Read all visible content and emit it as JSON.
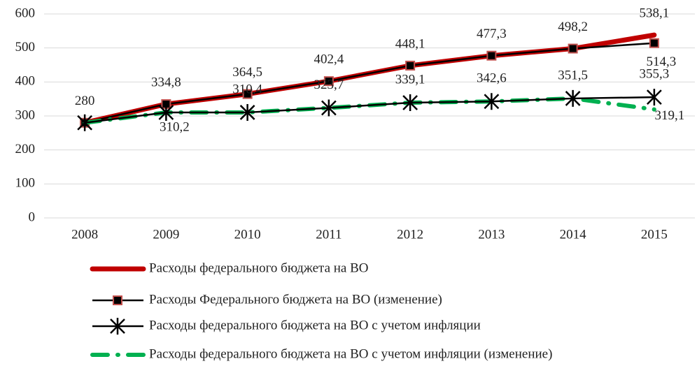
{
  "chart_data": {
    "type": "line",
    "categories": [
      "2008",
      "2009",
      "2010",
      "2011",
      "2012",
      "2013",
      "2014",
      "2015"
    ],
    "ylim": [
      0,
      600
    ],
    "yticks": [
      0,
      100,
      200,
      300,
      400,
      500,
      600
    ],
    "grid": true,
    "legend": "bottom",
    "series": [
      {
        "name": "Расходы федерального бюджета на ВО",
        "color": "#c00000",
        "values": [
          280,
          334.8,
          364.5,
          402.4,
          448.1,
          477.3,
          498.2,
          538.1
        ],
        "value_labels": [
          "280",
          "334,8",
          "364,5",
          "402,4",
          "448,1",
          "477,3",
          "498,2",
          "538,1"
        ]
      },
      {
        "name": "Расходы Федерального бюджета на ВО (изменение)",
        "color": "#000000",
        "marker_color": "#c0504d",
        "values": [
          280,
          334.8,
          364.5,
          402.4,
          448.1,
          477.3,
          498.2,
          514.3
        ],
        "value_labels": [
          null,
          null,
          null,
          null,
          null,
          null,
          null,
          "514,3"
        ]
      },
      {
        "name": "Расходы федерального бюджета на ВО с учетом инфляции",
        "color": "#000000",
        "values": [
          280,
          310.2,
          310.4,
          323.7,
          339.1,
          342.6,
          351.5,
          355.3
        ],
        "value_labels": [
          null,
          "310,2",
          "310,4",
          "323,7",
          "339,1",
          "342,6",
          "351,5",
          "355,3"
        ]
      },
      {
        "name": "Расходы федерального бюджета на ВО с учетом инфляции (изменение)",
        "color": "#00b050",
        "values": [
          280,
          310.2,
          310.4,
          323.7,
          339.1,
          342.6,
          351.5,
          319.1
        ],
        "value_labels": [
          null,
          null,
          null,
          null,
          null,
          null,
          null,
          "319,1"
        ]
      }
    ]
  }
}
